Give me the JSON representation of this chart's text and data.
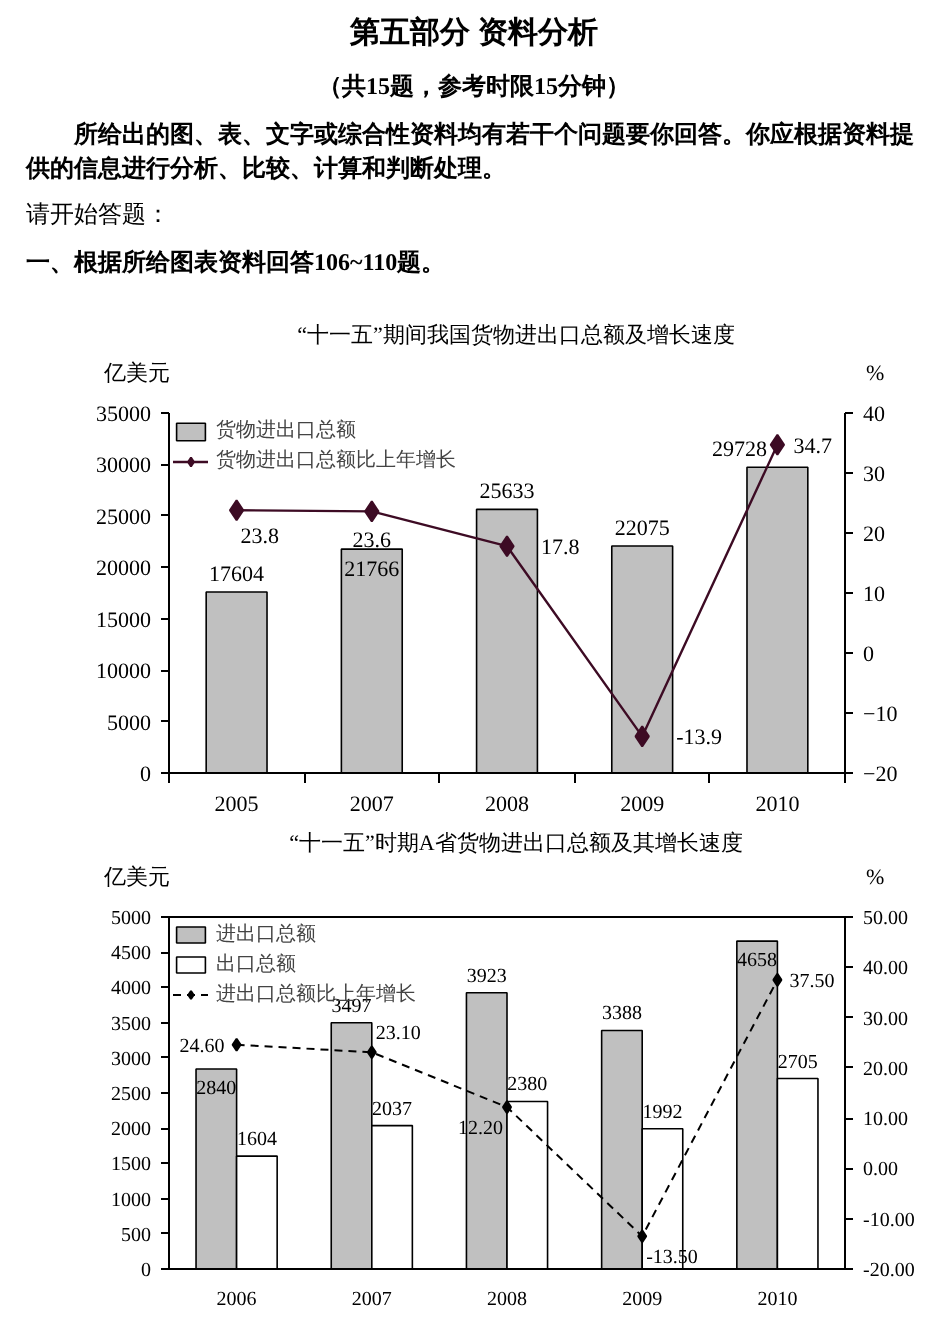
{
  "chart_data": [
    {
      "type": "bar",
      "title": "“十一五”期间我国货物进出口总额及增长速度",
      "annotations": [
        "第五部分 资料分析",
        "（共15题，参考时限15分钟）",
        "所给出的图、表、文字或综合性资料均有若干个问题要你回答。你应根据资料提供的信息进行分析、比较、计算和判断处理。",
        "请开始答题：",
        "一、根据所给图表资料回答106~110题。"
      ],
      "ylabel": "亿美元",
      "y2label": "%",
      "categories": [
        "2005",
        "2007",
        "2008",
        "2009",
        "2010"
      ],
      "series": [
        {
          "name": "货物进出口总额",
          "color": "#c0c0c0",
          "values": [
            17604,
            21766,
            25633,
            22075,
            29728
          ]
        },
        {
          "name": "货物进出口总额比上年增长",
          "type": "line",
          "axis": "y2",
          "color": "#3d0b24",
          "values": [
            23.8,
            23.6,
            17.8,
            -13.9,
            34.7
          ]
        }
      ],
      "ylim": [
        0,
        35000
      ],
      "yticks": [
        0,
        5000,
        10000,
        15000,
        20000,
        25000,
        30000,
        35000
      ],
      "y2lim": [
        -20,
        40
      ],
      "y2ticks": [
        -20,
        -10,
        0,
        10,
        20,
        30,
        40
      ],
      "legend": "top left",
      "marker": "diamond",
      "line_style": "solid",
      "data_labels": true
    },
    {
      "type": "bar",
      "title": "“十一五”时期A省货物进出口总额及其增长速度",
      "ylabel": "亿美元",
      "y2label": "%",
      "categories": [
        "2006",
        "2007",
        "2008",
        "2009",
        "2010"
      ],
      "series": [
        {
          "name": "进出口总额",
          "color": "#c0c0c0",
          "values": [
            2840,
            3497,
            3923,
            3388,
            4658
          ]
        },
        {
          "name": "出口总额",
          "color": "#ffffff",
          "values": [
            1604,
            2037,
            2380,
            1992,
            2705
          ]
        },
        {
          "name": "进出口总额比上年增长",
          "type": "line",
          "axis": "y2",
          "color": "#000000",
          "values": [
            24.6,
            23.1,
            12.2,
            -13.5,
            37.5
          ],
          "value_labels": [
            "24.60",
            "23.10",
            "12.20",
            "-13.50",
            "37.50"
          ]
        }
      ],
      "ylim": [
        0,
        5000
      ],
      "yticks": [
        0,
        500,
        1000,
        1500,
        2000,
        2500,
        3000,
        3500,
        4000,
        4500,
        5000
      ],
      "y2lim": [
        -20,
        50
      ],
      "y2ticks": [
        {
          "value": -20,
          "label": "-20.00"
        },
        {
          "value": -10,
          "label": "-10.00"
        },
        {
          "value": 0,
          "label": "0.00"
        },
        {
          "value": 10,
          "label": "10.00"
        },
        {
          "value": 20,
          "label": "20.00"
        },
        {
          "value": 30,
          "label": "30.00"
        },
        {
          "value": 40,
          "label": "40.00"
        },
        {
          "value": 50,
          "label": "50.00"
        }
      ],
      "legend": "top left",
      "marker": "diamond",
      "line_style": "dashed",
      "data_labels": true
    }
  ]
}
